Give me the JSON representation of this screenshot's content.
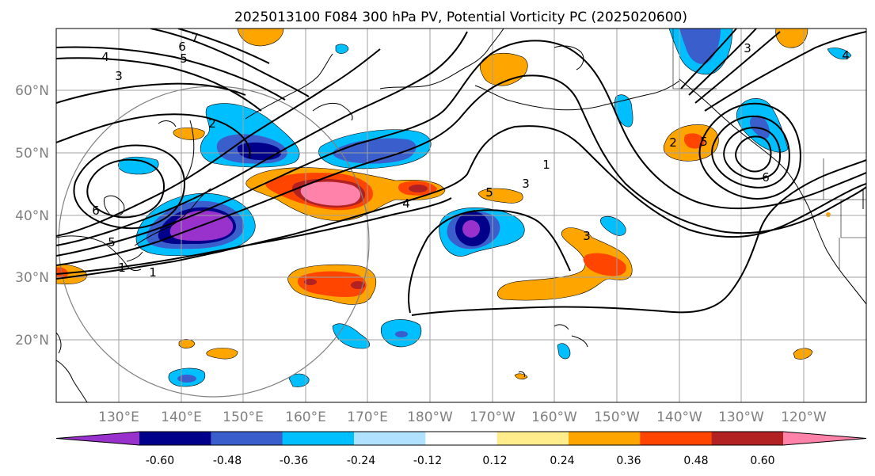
{
  "title": "2025013100 F084 300 hPa PV, Potential Vorticity PC (2025020600)",
  "lon_labels": [
    "130°E",
    "140°E",
    "150°E",
    "160°E",
    "170°E",
    "180°W",
    "170°W",
    "160°W",
    "150°W",
    "140°W",
    "130°W",
    "120°W"
  ],
  "lat_labels": [
    "60°N",
    "50°N",
    "40°N",
    "30°N",
    "20°N"
  ],
  "colorbar": {
    "colors": [
      "#9932cc",
      "#00008b",
      "#3a5fcd",
      "#00bfff",
      "#b0e2ff",
      "#ffffff",
      "#ffec8b",
      "#ffa500",
      "#ff4500",
      "#b22222",
      "#ff82ab"
    ],
    "tick_labels": [
      "-0.60",
      "-0.48",
      "-0.36",
      "-0.24",
      "-0.12",
      "0.12",
      "0.24",
      "0.36",
      "0.48",
      "0.60"
    ]
  },
  "contour_labels": [
    "7",
    "6",
    "5",
    "4",
    "3",
    "2",
    "6",
    "5",
    "1",
    "4",
    "1",
    "3",
    "5",
    "3",
    "2",
    "5",
    "6",
    "3",
    "4",
    "1"
  ]
}
